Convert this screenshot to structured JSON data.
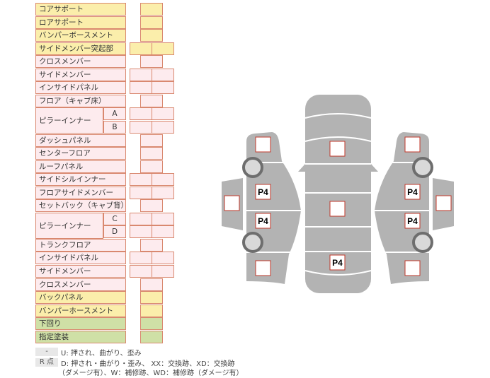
{
  "rows": [
    {
      "label": "コアサポート",
      "color": "y",
      "cols": 1
    },
    {
      "label": "ロアサポート",
      "color": "y",
      "cols": 1
    },
    {
      "label": "バンパーボースメント",
      "color": "y",
      "cols": 1
    },
    {
      "label": "サイドメンバー突起部",
      "color": "y",
      "cols": 2
    },
    {
      "label": "クロスメンバー",
      "color": "p",
      "cols": 1
    },
    {
      "label": "サイドメンバー",
      "color": "p",
      "cols": 2
    },
    {
      "label": "インサイドパネル",
      "color": "p",
      "cols": 2
    },
    {
      "label": "フロア（キャブ床）",
      "color": "p",
      "cols": 1
    },
    {
      "group": "ピラーインナー",
      "sub": "A",
      "color": "p",
      "cols": 2
    },
    {
      "sub": "B",
      "color": "p",
      "cols": 2
    },
    {
      "label": "ダッシュパネル",
      "color": "p",
      "cols": 1
    },
    {
      "label": "センターフロア",
      "color": "p",
      "cols": 1
    },
    {
      "label": "ルーフパネル",
      "color": "p",
      "cols": 1
    },
    {
      "label": "サイドシルインナー",
      "color": "p",
      "cols": 2
    },
    {
      "label": "フロアサイドメンバー",
      "color": "p",
      "cols": 2
    },
    {
      "label": "セットバック（キャブ背）",
      "color": "p",
      "cols": 1
    },
    {
      "group": "ピラーインナー",
      "sub": "C",
      "color": "p",
      "cols": 2
    },
    {
      "sub": "D",
      "color": "p",
      "cols": 2
    },
    {
      "label": "トランクフロア",
      "color": "p",
      "cols": 1
    },
    {
      "label": "インサイドパネル",
      "color": "p",
      "cols": 2
    },
    {
      "label": "サイドメンバー",
      "color": "p",
      "cols": 2
    },
    {
      "label": "クロスメンバー",
      "color": "p",
      "cols": 1
    },
    {
      "label": "バックパネル",
      "color": "y",
      "cols": 1
    },
    {
      "label": "バンパーホースメント",
      "color": "y",
      "cols": 1
    },
    {
      "label": "下回り",
      "color": "g",
      "cols": 1
    },
    {
      "label": "指定塗装",
      "color": "g",
      "cols": 1
    }
  ],
  "legend": {
    "key1": "-",
    "text1": "U: 押され、曲がり、歪み",
    "key2": "R 点",
    "text2": "D: 押され・曲がり・歪み、 XX：交換跡、XD：交換跡",
    "text3": "（ダメージ有）、W：補修跡、WD：補修跡（ダメージ有）"
  },
  "diagram": {
    "markers": [
      "",
      "P4",
      "P4",
      "",
      "",
      "",
      "",
      "P4",
      "",
      "P4",
      "P4",
      "",
      ""
    ]
  },
  "colors": {
    "body": "#b3b3b3",
    "marker_border": "#c0392b",
    "cell_border": "#d9886f"
  }
}
